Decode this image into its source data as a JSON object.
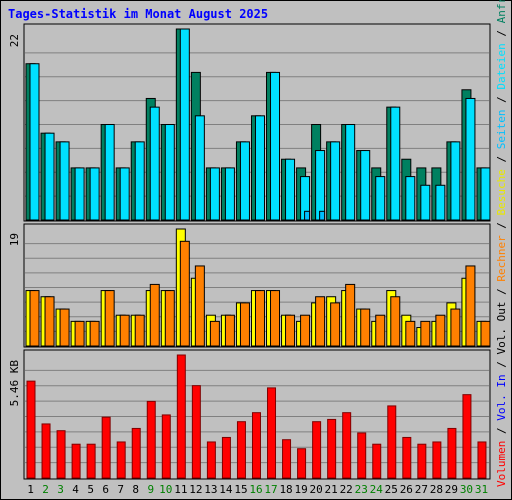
{
  "title": "Tages-Statistik im Monat August 2025",
  "colors": {
    "background": "#c0c0c0",
    "grid": "#808080",
    "title": "#0000ff",
    "anfragen": "#008060",
    "dateien": "#00e0ff",
    "seiten": "#00c0ff",
    "besuche": "#ffff00",
    "rechner": "#ff8000",
    "volumen": "#ff0000",
    "vol_in": "#0000ff",
    "vol_out": "#000000",
    "weekday_label": "#000000",
    "weekend_label": "#008000"
  },
  "chart_data": [
    {
      "type": "bar",
      "panel": "hits",
      "max_label": "22",
      "ylim": [
        0,
        22
      ],
      "legend_placement": "right-vertical",
      "legend": [
        {
          "key": "anfragen",
          "label": "Anfragen"
        },
        {
          "key": "dateien",
          "label": "Dateien"
        },
        {
          "key": "seiten",
          "label": "Seiten"
        }
      ],
      "categories": [
        "1",
        "2",
        "3",
        "4",
        "5",
        "6",
        "7",
        "8",
        "9",
        "10",
        "11",
        "12",
        "13",
        "14",
        "15",
        "16",
        "17",
        "18",
        "19",
        "20",
        "21",
        "22",
        "23",
        "24",
        "25",
        "26",
        "27",
        "28",
        "29",
        "30",
        "31"
      ],
      "weekend_days": [
        "2",
        "3",
        "9",
        "10",
        "16",
        "17",
        "23",
        "24",
        "30",
        "31"
      ],
      "series": [
        {
          "name": "Anfragen",
          "key": "anfragen",
          "values": [
            18,
            10,
            9,
            6,
            6,
            11,
            6,
            9,
            14,
            11,
            22,
            17,
            6,
            6,
            9,
            12,
            17,
            7,
            6,
            11,
            9,
            11,
            8,
            6,
            13,
            7,
            6,
            6,
            9,
            15,
            6
          ]
        },
        {
          "name": "Dateien",
          "key": "dateien",
          "values": [
            18,
            10,
            9,
            6,
            6,
            11,
            6,
            9,
            13,
            11,
            22,
            12,
            6,
            6,
            9,
            12,
            17,
            7,
            5,
            8,
            9,
            11,
            8,
            5,
            13,
            5,
            4,
            4,
            9,
            14,
            6
          ]
        },
        {
          "name": "Seiten",
          "key": "seiten",
          "values": [
            0,
            0,
            0,
            0,
            0,
            0,
            0,
            0,
            0,
            0,
            0,
            0,
            0,
            0,
            0,
            0,
            0,
            0,
            1,
            1,
            0,
            0,
            0,
            0,
            0,
            0,
            0,
            0,
            0,
            0,
            0
          ]
        }
      ]
    },
    {
      "type": "bar",
      "panel": "visits",
      "max_label": "19",
      "ylim": [
        0,
        19
      ],
      "legend": [
        {
          "key": "besuche",
          "label": "Besuche"
        },
        {
          "key": "rechner",
          "label": "Rechner"
        }
      ],
      "categories": [
        "1",
        "2",
        "3",
        "4",
        "5",
        "6",
        "7",
        "8",
        "9",
        "10",
        "11",
        "12",
        "13",
        "14",
        "15",
        "16",
        "17",
        "18",
        "19",
        "20",
        "21",
        "22",
        "23",
        "24",
        "25",
        "26",
        "27",
        "28",
        "29",
        "30",
        "31"
      ],
      "series": [
        {
          "name": "Besuche",
          "key": "besuche",
          "values": [
            9,
            8,
            6,
            4,
            4,
            9,
            5,
            5,
            9,
            9,
            19,
            11,
            5,
            5,
            7,
            9,
            9,
            5,
            4,
            7,
            8,
            9,
            6,
            4,
            9,
            5,
            3,
            4,
            7,
            11,
            4
          ]
        },
        {
          "name": "Rechner",
          "key": "rechner",
          "values": [
            9,
            8,
            6,
            4,
            4,
            9,
            5,
            5,
            10,
            9,
            17,
            13,
            4,
            5,
            7,
            9,
            9,
            5,
            5,
            8,
            7,
            10,
            6,
            5,
            8,
            4,
            4,
            5,
            6,
            13,
            4
          ]
        }
      ]
    },
    {
      "type": "bar",
      "panel": "volume",
      "max_label": "5.46 KB",
      "ylim": [
        0,
        5.46
      ],
      "unit": "KB",
      "legend": [
        {
          "key": "volumen",
          "label": "Volumen"
        },
        {
          "key": "vol_in",
          "label": "Vol. In"
        },
        {
          "key": "vol_out",
          "label": "Vol. Out"
        }
      ],
      "categories": [
        "1",
        "2",
        "3",
        "4",
        "5",
        "6",
        "7",
        "8",
        "9",
        "10",
        "11",
        "12",
        "13",
        "14",
        "15",
        "16",
        "17",
        "18",
        "19",
        "20",
        "21",
        "22",
        "23",
        "24",
        "25",
        "26",
        "27",
        "28",
        "29",
        "30",
        "31"
      ],
      "series": [
        {
          "name": "Volumen",
          "key": "volumen",
          "values": [
            4.3,
            2.4,
            2.1,
            1.5,
            1.5,
            2.7,
            1.6,
            2.2,
            3.4,
            2.8,
            5.46,
            4.1,
            1.6,
            1.8,
            2.5,
            2.9,
            4.0,
            1.7,
            1.3,
            2.5,
            2.6,
            2.9,
            2.0,
            1.5,
            3.2,
            1.8,
            1.5,
            1.6,
            2.2,
            3.7,
            1.6
          ]
        }
      ]
    }
  ]
}
